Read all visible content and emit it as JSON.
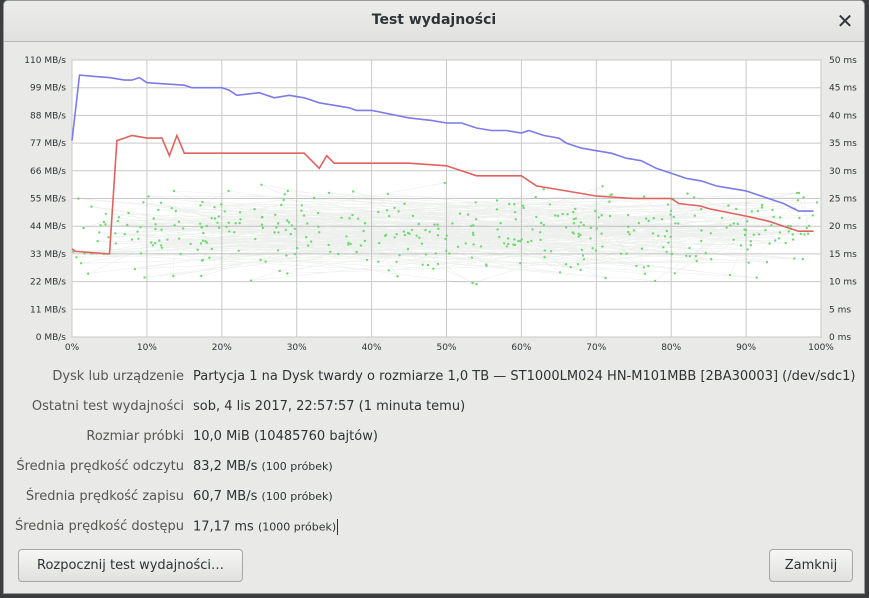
{
  "window": {
    "title": "Test wydajności",
    "close_icon": "close-icon"
  },
  "chart_data": {
    "type": "line",
    "xlim": [
      0,
      100
    ],
    "x_ticks": [
      "0%",
      "10%",
      "20%",
      "30%",
      "40%",
      "50%",
      "60%",
      "70%",
      "80%",
      "90%",
      "100%"
    ],
    "left_axis": {
      "unit": "MB/s",
      "ylim": [
        0,
        110
      ],
      "ticks": [
        "0 MB/s",
        "11 MB/s",
        "22 MB/s",
        "33 MB/s",
        "44 MB/s",
        "55 MB/s",
        "66 MB/s",
        "77 MB/s",
        "88 MB/s",
        "99 MB/s",
        "110 MB/s"
      ]
    },
    "right_axis": {
      "unit": "ms",
      "ylim": [
        0,
        50
      ],
      "ticks": [
        "0 ms",
        "5 ms",
        "10 ms",
        "15 ms",
        "20 ms",
        "25 ms",
        "30 ms",
        "35 ms",
        "40 ms",
        "45 ms",
        "50 ms"
      ]
    },
    "grid": true,
    "series": [
      {
        "color": "#7b7bea",
        "axis": "left",
        "x": [
          0,
          1,
          3,
          5,
          7,
          8,
          9,
          10,
          15,
          16,
          20,
          21,
          22,
          25,
          27,
          29,
          31,
          33,
          35,
          37,
          38,
          40,
          45,
          48,
          50,
          52,
          54,
          56,
          58,
          60,
          61,
          63,
          65,
          66,
          68,
          70,
          72,
          74,
          76,
          78,
          80,
          82,
          84,
          86,
          88,
          90,
          92,
          93,
          95,
          97,
          98,
          99
        ],
        "y": [
          78,
          104,
          103.5,
          103,
          102,
          102,
          103,
          101,
          100,
          99,
          99,
          98,
          96,
          97,
          95,
          96,
          95,
          93,
          92,
          91,
          90,
          90,
          87,
          86,
          85,
          85,
          83,
          82,
          82,
          81,
          82,
          80,
          79,
          77,
          75,
          74,
          73,
          71,
          70,
          67,
          65,
          63,
          62,
          60,
          59,
          58,
          56,
          55,
          53,
          50,
          50,
          50
        ]
      },
      {
        "color": "#e0625e",
        "axis": "left",
        "x": [
          0,
          0.5,
          5,
          6,
          7,
          8,
          10,
          12,
          13,
          14,
          15,
          16,
          20,
          25,
          30,
          31,
          32,
          33,
          34,
          35,
          37,
          40,
          45,
          50,
          54,
          60,
          62,
          70,
          75,
          80,
          81,
          84,
          85,
          90,
          93,
          95,
          97,
          99
        ],
        "y": [
          35,
          34,
          33,
          78,
          79,
          80,
          79,
          79,
          72,
          80,
          73,
          73,
          73,
          73,
          73,
          73,
          70,
          67,
          72,
          69,
          69,
          69,
          69,
          68,
          64,
          64,
          60,
          56,
          55,
          55,
          53,
          52,
          51,
          48,
          46,
          44,
          42,
          42
        ]
      },
      {
        "color": "#6fd96f",
        "axis": "right",
        "type": "scatter",
        "note_type": "access-time samples",
        "count": 1000,
        "range": [
          8,
          30
        ]
      }
    ]
  },
  "info": {
    "device_label": "Dysk lub urządzenie",
    "device_value": "Partycja 1 na Dysk twardy o rozmiarze 1,0 TB — ST1000LM024 HN-M101MBB [2BA30003] (/dev/sdc1)",
    "last_test_label": "Ostatni test wydajności",
    "last_test_value": "sob, 4 lis 2017, 22:57:57 (1 minuta temu)",
    "sample_size_label": "Rozmiar próbki",
    "sample_size_value": "10,0 MiB (10485760 bajtów)",
    "read_label": "Średnia prędkość odczytu",
    "read_value": "83,2 MB/s",
    "read_samples": "(100 próbek)",
    "write_label": "Średnia prędkość zapisu",
    "write_value": "60,7 MB/s",
    "write_samples": "(100 próbek)",
    "access_label": "Średnia prędkość dostępu",
    "access_value": "17,17 ms",
    "access_samples": "(1000 próbek)"
  },
  "buttons": {
    "start": "Rozpocznij test wydajności…",
    "close": "Zamknij"
  }
}
